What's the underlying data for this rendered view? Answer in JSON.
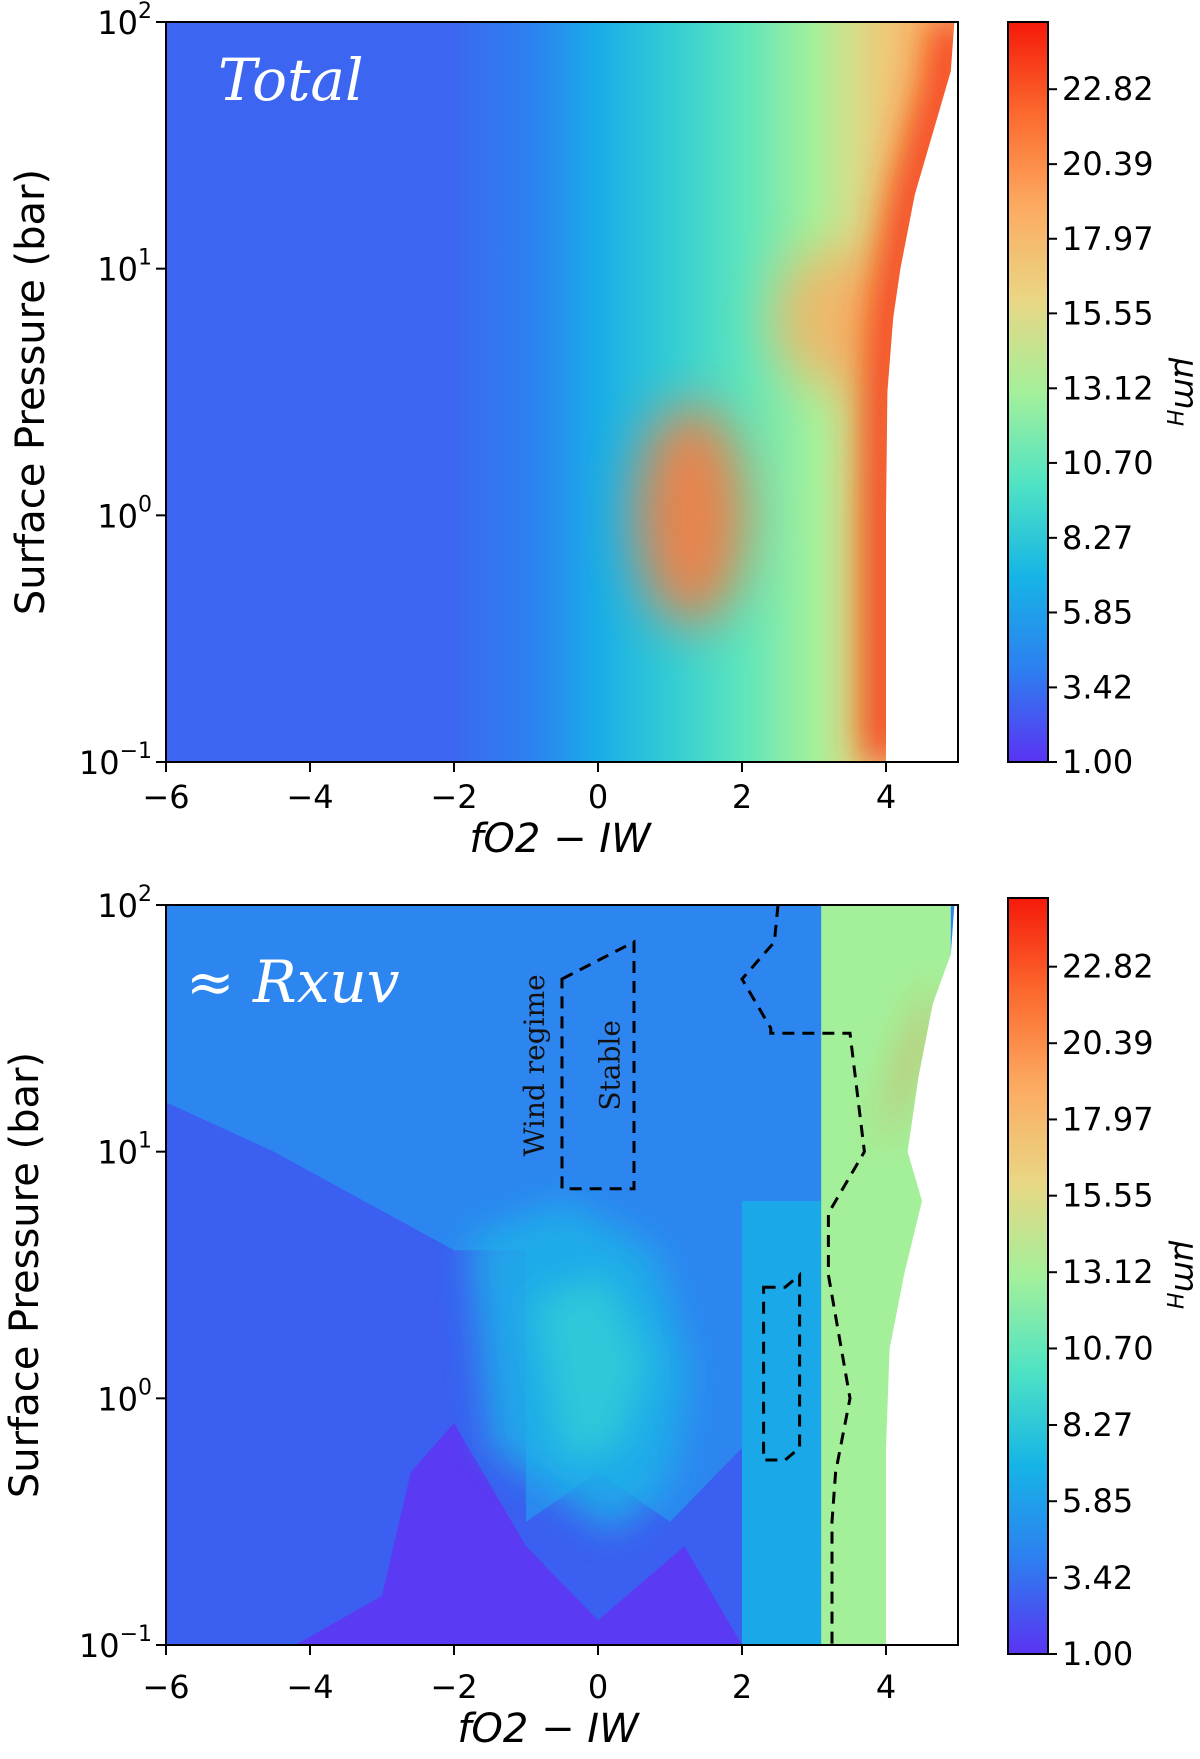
{
  "colors": {
    "rainbow": [
      "#5a34f2",
      "#2d7ff0",
      "#16b4e6",
      "#4fe3c4",
      "#a4f09a",
      "#e9d684",
      "#fcab61",
      "#fc6a2e",
      "#f51a0a"
    ],
    "frame": "#000000",
    "mask": "#ffffff",
    "panel_label": "#ffffff",
    "contour": "#000000"
  },
  "chart_data": [
    {
      "type": "heatmap",
      "panel_label": "Total",
      "xlabel": "fO2 − IW",
      "ylabel": "Surface Pressure (bar)",
      "xlim": [
        -6,
        5
      ],
      "ylim_log10": [
        -1,
        2
      ],
      "x_ticks": [
        "−6",
        "−4",
        "−2",
        "0",
        "2",
        "4"
      ],
      "x_tick_values": [
        -6,
        -4,
        -2,
        0,
        2,
        4
      ],
      "y_ticks": [
        {
          "base": "10",
          "exp": "−1",
          "value": -1
        },
        {
          "base": "10",
          "exp": "0",
          "value": 0
        },
        {
          "base": "10",
          "exp": "1",
          "value": 1
        },
        {
          "base": "10",
          "exp": "2",
          "value": 2
        }
      ],
      "colorbar": {
        "label": "μm_H",
        "range": [
          1.0,
          25.0
        ],
        "ticks": [
          "1.00",
          "3.42",
          "5.85",
          "8.27",
          "10.70",
          "13.12",
          "15.55",
          "17.97",
          "20.39",
          "22.82"
        ],
        "tick_values": [
          1.0,
          3.42,
          5.85,
          8.27,
          10.7,
          13.12,
          15.55,
          17.97,
          20.39,
          22.82
        ]
      },
      "field_profile_x": [
        -6,
        -2,
        -1.8,
        -1,
        -0.5,
        0,
        1,
        2,
        3,
        3.5,
        4,
        4.5,
        5
      ],
      "field_profile_value": [
        3.0,
        3.0,
        3.3,
        4.0,
        5.2,
        6.6,
        8.5,
        10.5,
        13.0,
        15.0,
        17.0,
        18.0,
        18.5
      ],
      "features": {
        "bump_center": [
          1.0,
          0.0
        ],
        "bump_value": 15.5
      },
      "valid_region_edge": {
        "log10p": [
          -1.0,
          0.0,
          0.5,
          0.8,
          1.0,
          1.3,
          1.6,
          1.8,
          2.0
        ],
        "fo2": [
          4.0,
          4.0,
          4.02,
          4.1,
          4.2,
          4.4,
          4.7,
          4.9,
          4.95
        ]
      }
    },
    {
      "type": "heatmap",
      "panel_label": "≈ Rxuv",
      "xlabel": "fO2 − IW",
      "ylabel": "Surface Pressure (bar)",
      "xlim": [
        -6,
        5
      ],
      "ylim_log10": [
        -1,
        2
      ],
      "x_ticks": [
        "−6",
        "−4",
        "−2",
        "0",
        "2",
        "4"
      ],
      "x_tick_values": [
        -6,
        -4,
        -2,
        0,
        2,
        4
      ],
      "y_ticks": [
        {
          "base": "10",
          "exp": "−1",
          "value": -1
        },
        {
          "base": "10",
          "exp": "0",
          "value": 0
        },
        {
          "base": "10",
          "exp": "1",
          "value": 1
        },
        {
          "base": "10",
          "exp": "2",
          "value": 2
        }
      ],
      "colorbar": {
        "label": "μm_H",
        "range": [
          1.0,
          25.0
        ],
        "ticks": [
          "1.00",
          "3.42",
          "5.85",
          "8.27",
          "10.70",
          "13.12",
          "15.55",
          "17.97",
          "20.39",
          "22.82"
        ],
        "tick_values": [
          1.0,
          3.42,
          5.85,
          8.27,
          10.7,
          13.12,
          15.55,
          17.97,
          20.39,
          22.82
        ]
      },
      "annotations": [
        {
          "text": "Wind regime",
          "x": -0.75,
          "log10p": 1.35,
          "rotation": -90
        },
        {
          "text": "Stable",
          "x": 0.3,
          "log10p": 1.35,
          "rotation": -90
        }
      ],
      "contours": {
        "boundary": {
          "x": [
            2.5,
            2.45,
            2.0,
            2.4,
            2.4,
            3.5,
            3.7,
            3.3,
            3.2,
            3.2,
            3.5,
            3.3,
            3.25,
            3.25
          ],
          "log10p": [
            2.0,
            1.85,
            1.7,
            1.5,
            1.48,
            1.48,
            1.0,
            0.8,
            0.75,
            0.5,
            0.0,
            -0.3,
            -0.5,
            -1.0
          ]
        },
        "loops": [
          {
            "x": [
              -0.5,
              0.5,
              0.5,
              -0.5,
              -0.5
            ],
            "log10p": [
              1.7,
              1.85,
              0.85,
              0.85,
              1.7
            ]
          },
          {
            "x": [
              2.3,
              2.6,
              2.8,
              2.8,
              2.6,
              2.3,
              2.3
            ],
            "log10p": [
              0.45,
              0.45,
              0.5,
              -0.2,
              -0.25,
              -0.25,
              0.45
            ]
          }
        ]
      },
      "valid_region_edge": {
        "log10p": [
          -1.0,
          -0.2,
          0.2,
          0.5,
          0.8,
          1.0,
          1.3,
          1.6,
          1.8,
          2.0
        ],
        "fo2": [
          4.0,
          4.0,
          4.05,
          4.25,
          4.5,
          4.3,
          4.45,
          4.65,
          4.9,
          4.95
        ]
      }
    }
  ]
}
